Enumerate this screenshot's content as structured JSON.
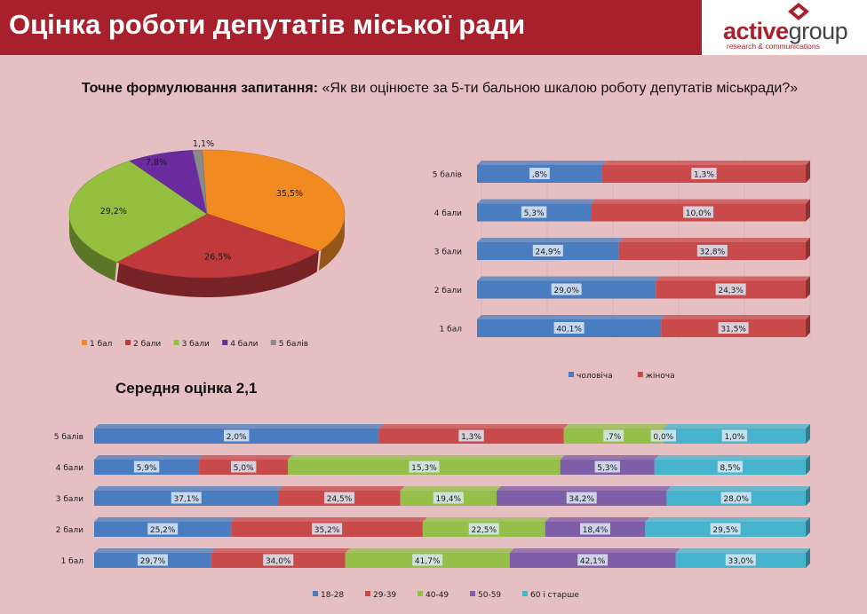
{
  "header": {
    "title": "Оцінка роботи депутатів міської ради",
    "logo_part1": "active",
    "logo_part2": "group",
    "logo_tagline": "research & communications"
  },
  "question": {
    "label": "Точне формулювання запитання:",
    "text": "«Як ви оцінюєте за 5-ти бальною шкалою роботу депутатів міськради?»"
  },
  "mean_score_label": "Середня оцінка 2,1",
  "colors": {
    "pie": [
      "#f28a22",
      "#c0393b",
      "#94bf3f",
      "#6a2b9e",
      "#8a8a8a"
    ],
    "gender": [
      "#4a7dc0",
      "#c84a4a"
    ],
    "age": [
      "#4a7dc0",
      "#c84a4a",
      "#94c04a",
      "#7e5ea6",
      "#45b4cc"
    ]
  },
  "chart_data": [
    {
      "type": "pie",
      "categories": [
        "1 бал",
        "2 бали",
        "3 бали",
        "4 бали",
        "5 балів"
      ],
      "values": [
        35.5,
        26.5,
        29.2,
        7.8,
        1.1
      ],
      "labels": [
        "35,5%",
        "26,5%",
        "29,2%",
        "7,8%",
        "1,1%"
      ],
      "legend": "bottom"
    },
    {
      "type": "bar",
      "orientation": "horizontal",
      "stacked": "percent",
      "categories": [
        "5 балів",
        "4 бали",
        "3 бали",
        "2 бали",
        "1 бал"
      ],
      "series": [
        {
          "name": "чоловіча",
          "values": [
            0.8,
            5.3,
            24.9,
            29.0,
            40.1
          ],
          "labels": [
            ",8%",
            "5,3%",
            "24,9%",
            "29,0%",
            "40,1%"
          ]
        },
        {
          "name": "жіноча",
          "values": [
            1.3,
            10.0,
            32.8,
            24.3,
            31.5
          ],
          "labels": [
            "1,3%",
            "10,0%",
            "32,8%",
            "24,3%",
            "31,5%"
          ]
        }
      ],
      "legend": "bottom"
    },
    {
      "type": "bar",
      "orientation": "horizontal",
      "stacked": "percent",
      "categories": [
        "5 балів",
        "4 бали",
        "3 бали",
        "2 бали",
        "1 бал"
      ],
      "series": [
        {
          "name": "18-28",
          "values": [
            2.0,
            5.9,
            37.1,
            25.2,
            29.7
          ],
          "labels": [
            "2,0%",
            "5,9%",
            "37,1%",
            "25,2%",
            "29,7%"
          ]
        },
        {
          "name": "29-39",
          "values": [
            1.3,
            5.0,
            24.5,
            35.2,
            34.0
          ],
          "labels": [
            "1,3%",
            "5,0%",
            "24,5%",
            "35,2%",
            "34,0%"
          ]
        },
        {
          "name": "40-49",
          "values": [
            0.7,
            15.3,
            19.4,
            22.5,
            41.7
          ],
          "labels": [
            ",7%",
            "15,3%",
            "19,4%",
            "22,5%",
            "41,7%"
          ]
        },
        {
          "name": "50-59",
          "values": [
            0.0,
            5.3,
            34.2,
            18.4,
            42.1
          ],
          "labels": [
            "0,0%",
            "5,3%",
            "34,2%",
            "18,4%",
            "42,1%"
          ]
        },
        {
          "name": "60 і старше",
          "values": [
            1.0,
            8.5,
            28.0,
            29.5,
            33.0
          ],
          "labels": [
            "1,0%",
            "8,5%",
            "28,0%",
            "29,5%",
            "33,0%"
          ]
        }
      ],
      "legend": "bottom"
    }
  ]
}
